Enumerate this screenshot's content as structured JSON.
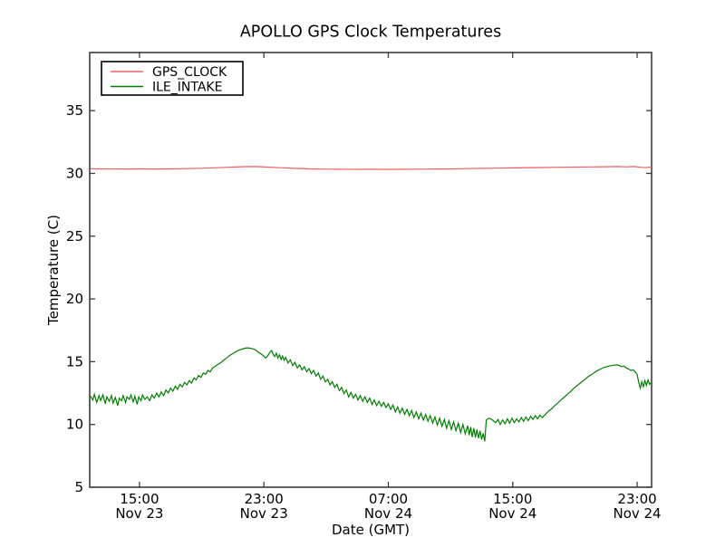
{
  "figure": {
    "background": "#ffffff",
    "spine_color": "#3c3c3c"
  },
  "chart_data": {
    "type": "line",
    "title": "APOLLO GPS Clock Temperatures",
    "xlabel": "Date (GMT)",
    "ylabel": "Temperature (C)",
    "grid": false,
    "x_unit": "hours since Nov 23 00:00 GMT",
    "xlim": [
      11.8,
      47.93
    ],
    "ylim": [
      5,
      39.63
    ],
    "yticks": [
      5,
      10,
      15,
      20,
      25,
      30,
      35
    ],
    "xticks": [
      {
        "v": 15,
        "time": "15:00",
        "date": "Nov 23"
      },
      {
        "v": 23,
        "time": "23:00",
        "date": "Nov 23"
      },
      {
        "v": 31,
        "time": "07:00",
        "date": "Nov 24"
      },
      {
        "v": 39,
        "time": "15:00",
        "date": "Nov 24"
      },
      {
        "v": 47,
        "time": "23:00",
        "date": "Nov 24"
      }
    ],
    "legend": {
      "position": "upper left",
      "entries": [
        {
          "label": "GPS_CLOCK",
          "color": "#f06060"
        },
        {
          "label": "ILE_INTAKE",
          "color": "#008000"
        }
      ]
    },
    "series": [
      {
        "name": "GPS_CLOCK",
        "color": "#f06060",
        "points": [
          [
            11.86,
            30.37
          ],
          [
            13,
            30.36
          ],
          [
            14,
            30.35
          ],
          [
            15,
            30.36
          ],
          [
            16,
            30.35
          ],
          [
            17,
            30.36
          ],
          [
            18,
            30.38
          ],
          [
            19,
            30.41
          ],
          [
            20,
            30.45
          ],
          [
            21,
            30.5
          ],
          [
            21.8,
            30.54
          ],
          [
            22.5,
            30.55
          ],
          [
            23.2,
            30.5
          ],
          [
            24,
            30.45
          ],
          [
            25,
            30.4
          ],
          [
            26,
            30.36
          ],
          [
            27,
            30.34
          ],
          [
            28,
            30.33
          ],
          [
            29,
            30.32
          ],
          [
            30,
            30.33
          ],
          [
            31,
            30.32
          ],
          [
            32,
            30.33
          ],
          [
            33,
            30.34
          ],
          [
            34,
            30.35
          ],
          [
            35,
            30.36
          ],
          [
            36,
            30.38
          ],
          [
            37,
            30.4
          ],
          [
            38,
            30.42
          ],
          [
            39,
            30.44
          ],
          [
            40,
            30.46
          ],
          [
            41,
            30.47
          ],
          [
            42,
            30.49
          ],
          [
            43,
            30.5
          ],
          [
            44,
            30.52
          ],
          [
            45,
            30.53
          ],
          [
            45.8,
            30.55
          ],
          [
            46.3,
            30.52
          ],
          [
            46.8,
            30.55
          ],
          [
            47.3,
            30.48
          ],
          [
            47.6,
            30.47
          ],
          [
            47.93,
            30.5
          ]
        ]
      },
      {
        "name": "ILE_INTAKE",
        "color": "#008000",
        "points": [
          [
            11.86,
            12.25
          ],
          [
            12.0,
            11.95
          ],
          [
            12.1,
            12.4
          ],
          [
            12.25,
            11.75
          ],
          [
            12.4,
            12.3
          ],
          [
            12.5,
            11.9
          ],
          [
            12.65,
            12.35
          ],
          [
            12.8,
            11.65
          ],
          [
            12.9,
            12.2
          ],
          [
            13.05,
            11.85
          ],
          [
            13.2,
            12.3
          ],
          [
            13.3,
            11.7
          ],
          [
            13.45,
            12.15
          ],
          [
            13.6,
            11.5
          ],
          [
            13.7,
            12.1
          ],
          [
            13.85,
            11.9
          ],
          [
            13.95,
            12.3
          ],
          [
            14.1,
            11.75
          ],
          [
            14.2,
            12.2
          ],
          [
            14.35,
            12.0
          ],
          [
            14.45,
            12.35
          ],
          [
            14.6,
            11.8
          ],
          [
            14.7,
            12.25
          ],
          [
            14.85,
            11.6
          ],
          [
            14.95,
            12.2
          ],
          [
            15.1,
            11.9
          ],
          [
            15.2,
            12.35
          ],
          [
            15.35,
            12.0
          ],
          [
            15.5,
            12.2
          ],
          [
            15.65,
            11.9
          ],
          [
            15.8,
            12.35
          ],
          [
            15.95,
            12.1
          ],
          [
            16.1,
            12.5
          ],
          [
            16.25,
            12.2
          ],
          [
            16.4,
            12.6
          ],
          [
            16.55,
            12.3
          ],
          [
            16.7,
            12.75
          ],
          [
            16.85,
            12.5
          ],
          [
            17.0,
            12.9
          ],
          [
            17.15,
            12.65
          ],
          [
            17.3,
            13.05
          ],
          [
            17.45,
            12.8
          ],
          [
            17.6,
            13.2
          ],
          [
            17.75,
            13.0
          ],
          [
            17.9,
            13.35
          ],
          [
            18.05,
            13.15
          ],
          [
            18.2,
            13.5
          ],
          [
            18.35,
            13.3
          ],
          [
            18.5,
            13.7
          ],
          [
            18.65,
            13.55
          ],
          [
            18.8,
            13.9
          ],
          [
            18.95,
            13.75
          ],
          [
            19.1,
            14.1
          ],
          [
            19.25,
            14.0
          ],
          [
            19.4,
            14.3
          ],
          [
            19.55,
            14.2
          ],
          [
            19.7,
            14.5
          ],
          [
            19.85,
            14.6
          ],
          [
            20.0,
            14.75
          ],
          [
            20.2,
            14.9
          ],
          [
            20.4,
            15.1
          ],
          [
            20.6,
            15.3
          ],
          [
            20.8,
            15.5
          ],
          [
            21.0,
            15.65
          ],
          [
            21.2,
            15.8
          ],
          [
            21.4,
            15.92
          ],
          [
            21.6,
            16.0
          ],
          [
            21.8,
            16.08
          ],
          [
            22.0,
            16.1
          ],
          [
            22.2,
            16.05
          ],
          [
            22.4,
            15.98
          ],
          [
            22.55,
            15.85
          ],
          [
            22.7,
            15.7
          ],
          [
            22.85,
            15.6
          ],
          [
            23.0,
            15.45
          ],
          [
            23.1,
            15.3
          ],
          [
            23.2,
            15.38
          ],
          [
            23.3,
            15.58
          ],
          [
            23.4,
            15.78
          ],
          [
            23.5,
            15.9
          ],
          [
            23.6,
            15.58
          ],
          [
            23.7,
            15.42
          ],
          [
            23.8,
            15.68
          ],
          [
            23.9,
            15.3
          ],
          [
            24.0,
            15.55
          ],
          [
            24.1,
            15.18
          ],
          [
            24.2,
            15.45
          ],
          [
            24.3,
            15.1
          ],
          [
            24.4,
            15.35
          ],
          [
            24.55,
            14.9
          ],
          [
            24.7,
            15.15
          ],
          [
            24.85,
            14.7
          ],
          [
            25.0,
            14.95
          ],
          [
            25.15,
            14.5
          ],
          [
            25.3,
            14.75
          ],
          [
            25.45,
            14.35
          ],
          [
            25.6,
            14.6
          ],
          [
            25.75,
            14.2
          ],
          [
            25.9,
            14.45
          ],
          [
            26.05,
            14.05
          ],
          [
            26.2,
            14.3
          ],
          [
            26.35,
            13.85
          ],
          [
            26.5,
            14.1
          ],
          [
            26.65,
            13.6
          ],
          [
            26.8,
            13.85
          ],
          [
            26.95,
            13.4
          ],
          [
            27.1,
            13.6
          ],
          [
            27.25,
            13.15
          ],
          [
            27.4,
            13.4
          ],
          [
            27.55,
            12.95
          ],
          [
            27.7,
            13.2
          ],
          [
            27.85,
            12.7
          ],
          [
            28.0,
            12.95
          ],
          [
            28.15,
            12.45
          ],
          [
            28.3,
            12.75
          ],
          [
            28.45,
            12.2
          ],
          [
            28.6,
            12.55
          ],
          [
            28.75,
            12.1
          ],
          [
            28.9,
            12.4
          ],
          [
            29.05,
            11.95
          ],
          [
            29.2,
            12.3
          ],
          [
            29.35,
            11.85
          ],
          [
            29.5,
            12.2
          ],
          [
            29.65,
            11.75
          ],
          [
            29.8,
            12.1
          ],
          [
            29.95,
            11.6
          ],
          [
            30.1,
            11.95
          ],
          [
            30.25,
            11.5
          ],
          [
            30.4,
            11.85
          ],
          [
            30.55,
            11.45
          ],
          [
            30.7,
            11.75
          ],
          [
            30.85,
            11.35
          ],
          [
            31.0,
            11.65
          ],
          [
            31.15,
            11.2
          ],
          [
            31.3,
            11.55
          ],
          [
            31.45,
            11.0
          ],
          [
            31.6,
            11.4
          ],
          [
            31.75,
            10.9
          ],
          [
            31.9,
            11.3
          ],
          [
            32.05,
            10.8
          ],
          [
            32.2,
            11.2
          ],
          [
            32.35,
            10.7
          ],
          [
            32.5,
            11.1
          ],
          [
            32.65,
            10.55
          ],
          [
            32.8,
            11.0
          ],
          [
            32.95,
            10.45
          ],
          [
            33.1,
            10.9
          ],
          [
            33.25,
            10.35
          ],
          [
            33.4,
            10.8
          ],
          [
            33.55,
            10.25
          ],
          [
            33.7,
            10.7
          ],
          [
            33.85,
            10.1
          ],
          [
            34.0,
            10.6
          ],
          [
            34.15,
            9.95
          ],
          [
            34.3,
            10.5
          ],
          [
            34.45,
            9.85
          ],
          [
            34.6,
            10.4
          ],
          [
            34.75,
            9.7
          ],
          [
            34.9,
            10.3
          ],
          [
            35.05,
            9.6
          ],
          [
            35.2,
            10.2
          ],
          [
            35.35,
            9.5
          ],
          [
            35.5,
            10.1
          ],
          [
            35.65,
            9.35
          ],
          [
            35.8,
            10.0
          ],
          [
            35.95,
            9.25
          ],
          [
            36.1,
            9.9
          ],
          [
            36.2,
            9.15
          ],
          [
            36.3,
            9.8
          ],
          [
            36.4,
            9.0
          ],
          [
            36.5,
            9.7
          ],
          [
            36.6,
            8.95
          ],
          [
            36.7,
            9.6
          ],
          [
            36.8,
            8.9
          ],
          [
            36.9,
            9.5
          ],
          [
            37.0,
            8.8
          ],
          [
            37.1,
            9.3
          ],
          [
            37.2,
            8.65
          ],
          [
            37.3,
            10.35
          ],
          [
            37.45,
            10.5
          ],
          [
            37.6,
            10.45
          ],
          [
            37.75,
            10.3
          ],
          [
            37.9,
            10.15
          ],
          [
            38.05,
            10.4
          ],
          [
            38.2,
            10.0
          ],
          [
            38.35,
            10.35
          ],
          [
            38.5,
            10.05
          ],
          [
            38.65,
            10.45
          ],
          [
            38.8,
            10.1
          ],
          [
            38.95,
            10.5
          ],
          [
            39.1,
            10.15
          ],
          [
            39.25,
            10.45
          ],
          [
            39.4,
            10.2
          ],
          [
            39.55,
            10.55
          ],
          [
            39.7,
            10.25
          ],
          [
            39.85,
            10.6
          ],
          [
            40.0,
            10.3
          ],
          [
            40.15,
            10.65
          ],
          [
            40.3,
            10.4
          ],
          [
            40.45,
            10.7
          ],
          [
            40.6,
            10.45
          ],
          [
            40.75,
            10.75
          ],
          [
            40.9,
            10.55
          ],
          [
            41.1,
            10.8
          ],
          [
            41.3,
            11.05
          ],
          [
            41.5,
            11.25
          ],
          [
            41.7,
            11.5
          ],
          [
            41.9,
            11.7
          ],
          [
            42.1,
            11.95
          ],
          [
            42.3,
            12.15
          ],
          [
            42.5,
            12.4
          ],
          [
            42.7,
            12.6
          ],
          [
            42.9,
            12.85
          ],
          [
            43.1,
            13.05
          ],
          [
            43.3,
            13.25
          ],
          [
            43.5,
            13.45
          ],
          [
            43.7,
            13.65
          ],
          [
            43.9,
            13.85
          ],
          [
            44.1,
            14.0
          ],
          [
            44.3,
            14.18
          ],
          [
            44.5,
            14.32
          ],
          [
            44.7,
            14.45
          ],
          [
            44.9,
            14.55
          ],
          [
            45.1,
            14.62
          ],
          [
            45.3,
            14.68
          ],
          [
            45.5,
            14.72
          ],
          [
            45.7,
            14.75
          ],
          [
            45.85,
            14.7
          ],
          [
            46.0,
            14.6
          ],
          [
            46.15,
            14.65
          ],
          [
            46.3,
            14.5
          ],
          [
            46.45,
            14.42
          ],
          [
            46.6,
            14.3
          ],
          [
            46.75,
            14.35
          ],
          [
            46.9,
            14.15
          ],
          [
            47.0,
            14.0
          ],
          [
            47.1,
            13.35
          ],
          [
            47.2,
            12.9
          ],
          [
            47.3,
            13.4
          ],
          [
            47.4,
            13.0
          ],
          [
            47.5,
            13.5
          ],
          [
            47.6,
            13.1
          ],
          [
            47.7,
            13.55
          ],
          [
            47.8,
            13.2
          ],
          [
            47.93,
            13.35
          ]
        ]
      }
    ]
  }
}
